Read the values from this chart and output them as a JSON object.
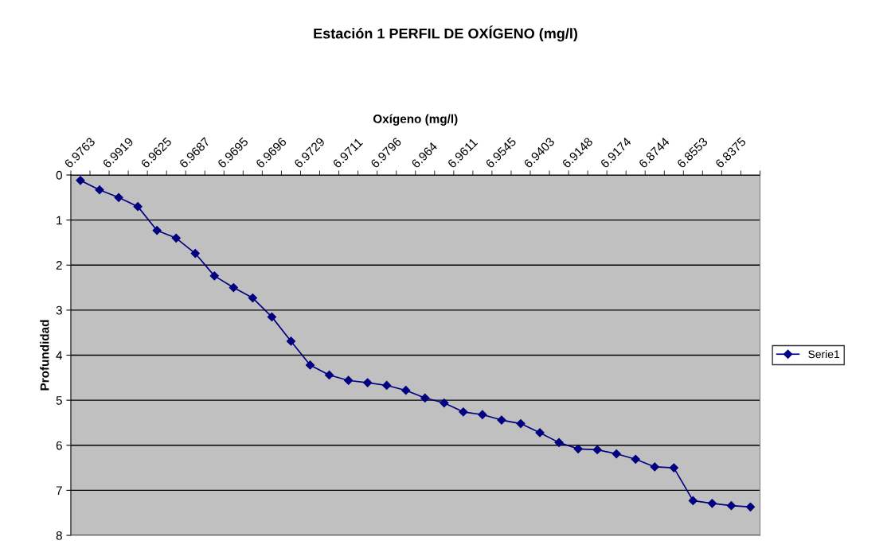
{
  "chart_data": {
    "type": "line",
    "title": "Estación 1 PERFIL DE OXÍGENO (mg/l)",
    "xlabel": "Oxígeno (mg/l)",
    "ylabel": "Profundidad",
    "categories": [
      "6.9763",
      null,
      "6.9919",
      null,
      "6.9625",
      null,
      "6.9687",
      null,
      "6.9695",
      null,
      "6.9696",
      null,
      "6.9729",
      null,
      "6.9711",
      null,
      "6.9796",
      null,
      "6.964",
      null,
      "6.9611",
      null,
      "6.9545",
      null,
      "6.9403",
      null,
      "6.9148",
      null,
      "6.9174",
      null,
      "6.8744",
      null,
      "6.8553",
      null,
      "6.8375",
      null
    ],
    "series": [
      {
        "name": "Serie1",
        "color": "#000080",
        "values": [
          0.12,
          0.33,
          0.5,
          0.7,
          1.23,
          1.4,
          1.74,
          2.24,
          2.5,
          2.73,
          3.15,
          3.69,
          4.22,
          4.44,
          4.56,
          4.61,
          4.67,
          4.78,
          4.95,
          5.06,
          5.26,
          5.32,
          5.44,
          5.52,
          5.72,
          5.94,
          6.08,
          6.1,
          6.19,
          6.31,
          6.48,
          6.5,
          7.23,
          7.29,
          7.34,
          7.37
        ]
      }
    ],
    "ylim": [
      8,
      0
    ],
    "yticks": [
      0,
      1,
      2,
      3,
      4,
      5,
      6,
      7,
      8
    ],
    "grid": "y",
    "legend": "right",
    "marker": "diamond",
    "line_style": "solid"
  }
}
